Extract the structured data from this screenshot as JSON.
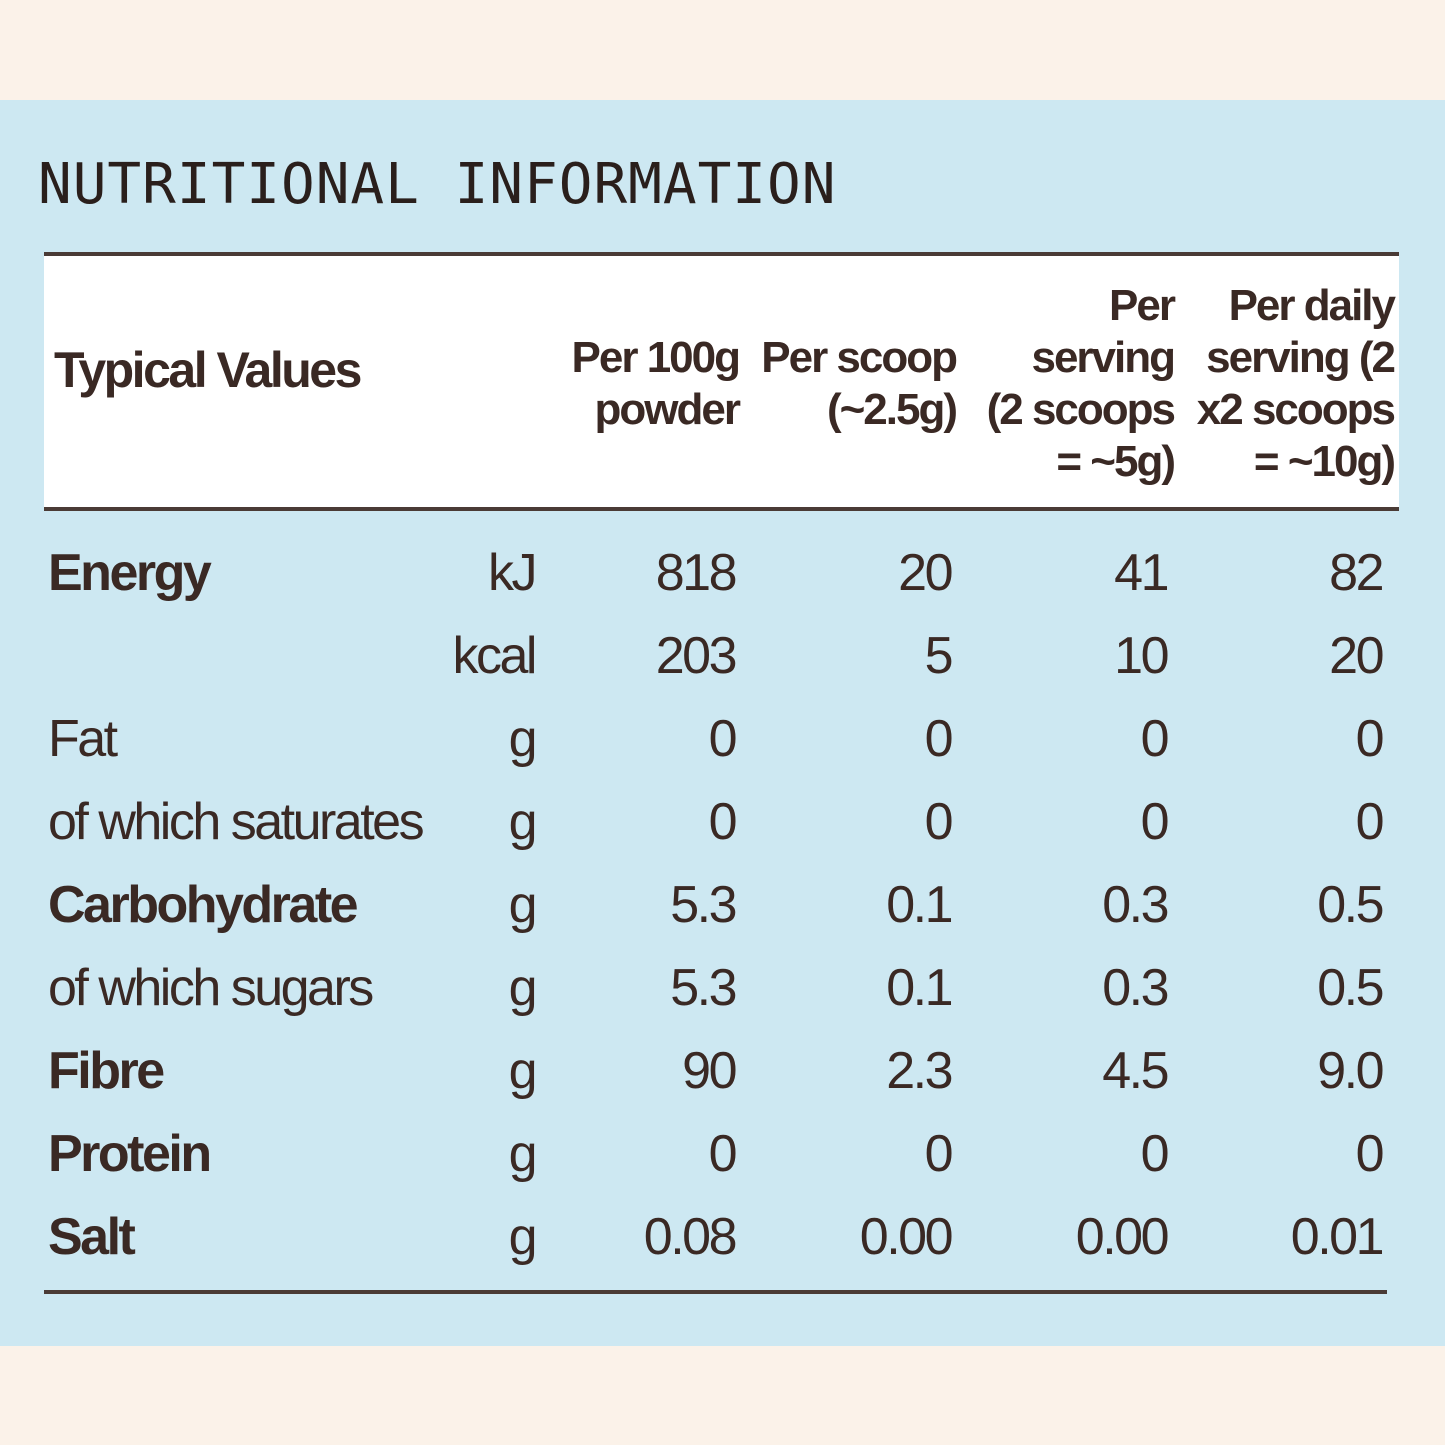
{
  "title": "NUTRITIONAL INFORMATION",
  "header": {
    "label": "Typical Values",
    "columns": [
      [
        "Per 100g",
        "powder"
      ],
      [
        "Per scoop",
        "(~2.5g)"
      ],
      [
        "Per",
        "serving",
        "(2 scoops",
        "= ~5g)"
      ],
      [
        "Per daily",
        "serving (2",
        "x2 scoops",
        "= ~10g)"
      ]
    ]
  },
  "rows": [
    {
      "name": "Energy",
      "bold": true,
      "unit": "kJ",
      "values": [
        "818",
        "20",
        "41",
        "82"
      ]
    },
    {
      "name": "",
      "bold": false,
      "unit": "kcal",
      "values": [
        "203",
        "5",
        "10",
        "20"
      ]
    },
    {
      "name": "Fat",
      "bold": false,
      "unit": "g",
      "values": [
        "0",
        "0",
        "0",
        "0"
      ]
    },
    {
      "name": "of which saturates",
      "bold": false,
      "unit": "g",
      "values": [
        "0",
        "0",
        "0",
        "0"
      ]
    },
    {
      "name": "Carbohydrate",
      "bold": true,
      "unit": "g",
      "values": [
        "5.3",
        "0.1",
        "0.3",
        "0.5"
      ]
    },
    {
      "name": "of which sugars",
      "bold": false,
      "unit": "g",
      "values": [
        "5.3",
        "0.1",
        "0.3",
        "0.5"
      ]
    },
    {
      "name": "Fibre",
      "bold": true,
      "unit": "g",
      "values": [
        "90",
        "2.3",
        "4.5",
        "9.0"
      ]
    },
    {
      "name": "Protein",
      "bold": true,
      "unit": "g",
      "values": [
        "0",
        "0",
        "0",
        "0"
      ]
    },
    {
      "name": "Salt",
      "bold": true,
      "unit": "g",
      "values": [
        "0.08",
        "0.00",
        "0.00",
        "0.01"
      ]
    }
  ]
}
